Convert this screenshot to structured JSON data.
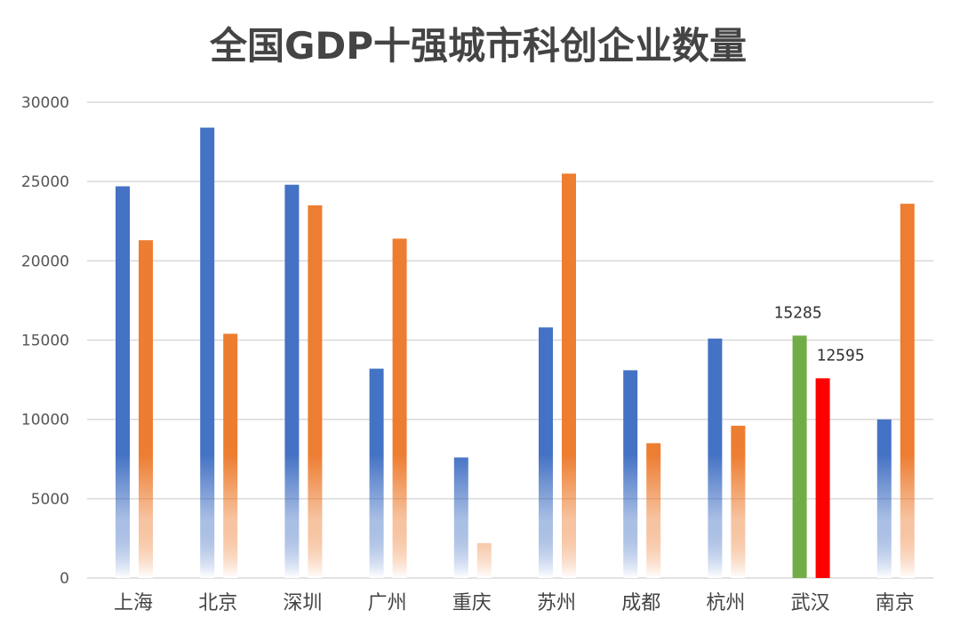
{
  "chart_data": {
    "type": "bar",
    "title": "全国GDP十强城市科创企业数量",
    "xlabel": "",
    "ylabel": "",
    "ylim": [
      0,
      30000
    ],
    "yticks": [
      "0",
      "5000",
      "10000",
      "15000",
      "20000",
      "25000",
      "30000"
    ],
    "grid": true,
    "legend": "none",
    "categories": [
      "上海",
      "北京",
      "深圳",
      "广州",
      "重庆",
      "苏州",
      "成都",
      "杭州",
      "武汉",
      "南京"
    ],
    "series": [
      {
        "values": [
          24700,
          28400,
          24800,
          13200,
          7600,
          15800,
          13100,
          15100,
          15285,
          10000
        ],
        "color": "#4472c4"
      },
      {
        "values": [
          21300,
          15400,
          23500,
          21400,
          2200,
          25500,
          8500,
          9600,
          12595,
          23600
        ],
        "color": "#ed7d31"
      }
    ],
    "highlight": {
      "category": "武汉",
      "colors": [
        "#70ad47",
        "#ff0000"
      ]
    },
    "annotations": [
      {
        "category": "武汉",
        "series": 0,
        "text": "15285"
      },
      {
        "category": "武汉",
        "series": 1,
        "text": "12595"
      }
    ]
  }
}
